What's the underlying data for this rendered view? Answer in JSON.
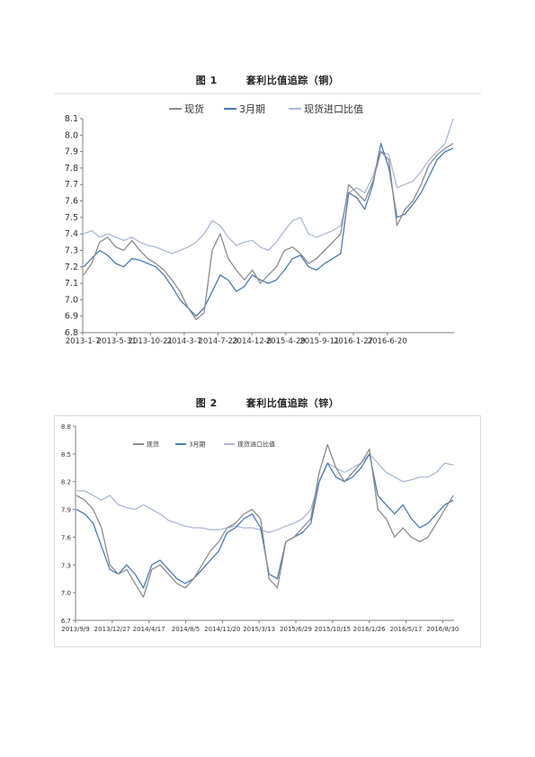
{
  "colors": {
    "spot": "#8c8c8c",
    "m3": "#4a7ab8",
    "ratio": "#a9b9d8",
    "axis": "#7f7f7f",
    "frame": "#d9d9d9"
  },
  "figure1": {
    "label": "图 1",
    "caption": "套利比值追踪（铜）",
    "chart_data": {
      "type": "line",
      "x_tick_labels": [
        "2013-1-7",
        "2013-5-31",
        "2013-10-21",
        "2014-3-7",
        "2014-7-23",
        "2014-12-8",
        "2015-4-29",
        "2015-9-11",
        "2016-1-27",
        "2016-6-20"
      ],
      "y_tick_labels": [
        "6.8",
        "6.9",
        "7.0",
        "7.1",
        "7.2",
        "7.3",
        "7.4",
        "7.5",
        "7.6",
        "7.7",
        "7.8",
        "7.9",
        "8.0",
        "8.1"
      ],
      "ylim": [
        6.8,
        8.1
      ],
      "legend_position": "top",
      "series": [
        {
          "name": "现货",
          "color": "#8c8c8c",
          "values": [
            7.15,
            7.22,
            7.35,
            7.38,
            7.32,
            7.3,
            7.36,
            7.3,
            7.25,
            7.22,
            7.18,
            7.12,
            7.05,
            6.95,
            6.88,
            6.92,
            7.3,
            7.4,
            7.25,
            7.18,
            7.12,
            7.18,
            7.1,
            7.15,
            7.2,
            7.3,
            7.32,
            7.28,
            7.22,
            7.25,
            7.3,
            7.35,
            7.4,
            7.7,
            7.65,
            7.6,
            7.72,
            7.9,
            7.85,
            7.45,
            7.55,
            7.6,
            7.7,
            7.82,
            7.88,
            7.92,
            7.95
          ]
        },
        {
          "name": "3月期",
          "color": "#4a7ab8",
          "values": [
            7.2,
            7.25,
            7.3,
            7.27,
            7.22,
            7.2,
            7.25,
            7.24,
            7.22,
            7.2,
            7.15,
            7.08,
            7.0,
            6.95,
            6.9,
            6.95,
            7.05,
            7.15,
            7.12,
            7.05,
            7.08,
            7.15,
            7.12,
            7.1,
            7.12,
            7.18,
            7.25,
            7.27,
            7.2,
            7.18,
            7.22,
            7.25,
            7.28,
            7.65,
            7.62,
            7.55,
            7.7,
            7.95,
            7.8,
            7.5,
            7.52,
            7.58,
            7.65,
            7.75,
            7.85,
            7.9,
            7.92
          ]
        },
        {
          "name": "现货进口比值",
          "color": "#a9b9d8",
          "values": [
            7.4,
            7.42,
            7.38,
            7.4,
            7.38,
            7.36,
            7.38,
            7.35,
            7.33,
            7.32,
            7.3,
            7.28,
            7.3,
            7.32,
            7.35,
            7.4,
            7.48,
            7.45,
            7.38,
            7.33,
            7.35,
            7.36,
            7.32,
            7.3,
            7.35,
            7.42,
            7.48,
            7.5,
            7.4,
            7.38,
            7.4,
            7.42,
            7.45,
            7.65,
            7.68,
            7.65,
            7.75,
            7.9,
            7.88,
            7.68,
            7.7,
            7.72,
            7.78,
            7.85,
            7.9,
            7.95,
            8.1
          ]
        }
      ]
    }
  },
  "figure2": {
    "label": "图 2",
    "caption": "套利比值追踪（锌）",
    "chart_data": {
      "type": "line",
      "x_tick_labels": [
        "2013/9/9",
        "2013/12/27",
        "2014/4/17",
        "2014/8/5",
        "2014/11/20",
        "2015/3/13",
        "2015/6/29",
        "2015/10/15",
        "2016/1/26",
        "2016/5/17",
        "2016/8/30"
      ],
      "y_tick_labels": [
        "6.7",
        "7.0",
        "7.3",
        "7.6",
        "7.9",
        "8.2",
        "8.5",
        "8.8"
      ],
      "ylim": [
        6.7,
        8.8
      ],
      "legend_position": "top",
      "series": [
        {
          "name": "现货",
          "color": "#8c8c8c",
          "values": [
            8.05,
            8.0,
            7.9,
            7.7,
            7.3,
            7.2,
            7.25,
            7.1,
            6.95,
            7.25,
            7.3,
            7.2,
            7.1,
            7.05,
            7.15,
            7.3,
            7.45,
            7.55,
            7.7,
            7.75,
            7.85,
            7.9,
            7.8,
            7.15,
            7.05,
            7.55,
            7.6,
            7.7,
            7.8,
            8.3,
            8.6,
            8.35,
            8.2,
            8.3,
            8.4,
            8.55,
            7.9,
            7.8,
            7.6,
            7.7,
            7.6,
            7.55,
            7.6,
            7.75,
            7.9,
            8.05
          ]
        },
        {
          "name": "3月期",
          "color": "#4a7ab8",
          "values": [
            7.9,
            7.85,
            7.75,
            7.5,
            7.25,
            7.2,
            7.3,
            7.2,
            7.05,
            7.3,
            7.35,
            7.25,
            7.15,
            7.1,
            7.15,
            7.25,
            7.35,
            7.45,
            7.65,
            7.7,
            7.8,
            7.85,
            7.7,
            7.2,
            7.15,
            7.55,
            7.6,
            7.65,
            7.75,
            8.2,
            8.4,
            8.25,
            8.2,
            8.25,
            8.35,
            8.5,
            8.05,
            7.95,
            7.85,
            7.95,
            7.8,
            7.7,
            7.75,
            7.85,
            7.95,
            8.0
          ]
        },
        {
          "name": "现货进口比值",
          "color": "#a9b9d8",
          "values": [
            8.1,
            8.1,
            8.05,
            8.0,
            8.05,
            7.95,
            7.92,
            7.9,
            7.95,
            7.9,
            7.85,
            7.78,
            7.75,
            7.72,
            7.7,
            7.7,
            7.68,
            7.68,
            7.7,
            7.72,
            7.7,
            7.7,
            7.68,
            7.65,
            7.68,
            7.72,
            7.75,
            7.8,
            7.9,
            8.2,
            8.4,
            8.35,
            8.3,
            8.35,
            8.4,
            8.5,
            8.4,
            8.3,
            8.25,
            8.2,
            8.22,
            8.25,
            8.25,
            8.3,
            8.4,
            8.38
          ]
        }
      ]
    }
  }
}
